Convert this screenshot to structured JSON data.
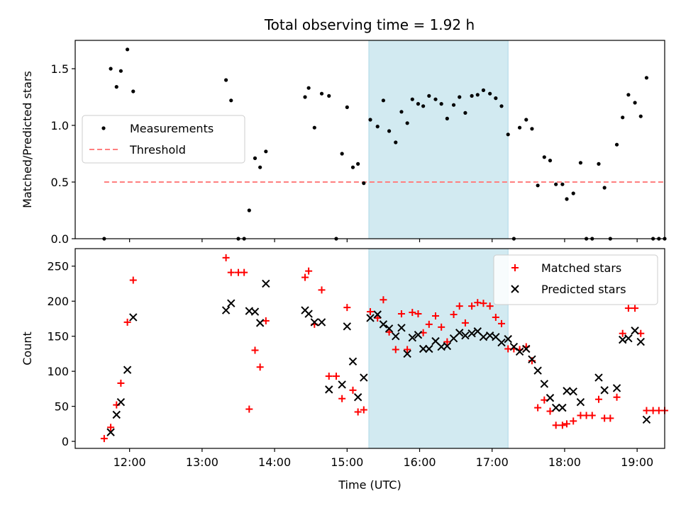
{
  "title": "Total observing time = 1.92 h",
  "colors": {
    "shade": "#add8e6",
    "measurement": "#000000",
    "threshold": "#ff7f7f",
    "matched": "#ff0000",
    "predicted": "#000000"
  },
  "chart_data": [
    {
      "type": "scatter",
      "ylabel": "Matched/Predicted stars",
      "xlabel": "",
      "ylim": [
        0,
        1.75
      ],
      "yticks": [
        "0.0",
        "0.5",
        "1.0",
        "1.5"
      ],
      "yticks_values": [
        0,
        0.5,
        1.0,
        1.5
      ],
      "xlim_hours": [
        11.25,
        19.38
      ],
      "shaded_span_hours": [
        15.3,
        17.22
      ],
      "legend": {
        "position": "center-left",
        "entries": [
          "Measurements",
          "Threshold"
        ]
      },
      "threshold": {
        "value": 0.5,
        "x_hours": [
          11.65,
          19.4
        ]
      },
      "series": [
        {
          "name": "Measurements",
          "points": [
            [
              11.65,
              0.0
            ],
            [
              11.74,
              1.5
            ],
            [
              11.82,
              1.34
            ],
            [
              11.88,
              1.48
            ],
            [
              11.97,
              1.67
            ],
            [
              12.05,
              1.3
            ],
            [
              13.33,
              1.4
            ],
            [
              13.4,
              1.22
            ],
            [
              13.5,
              0.0
            ],
            [
              13.58,
              0.0
            ],
            [
              13.65,
              0.25
            ],
            [
              13.73,
              0.71
            ],
            [
              13.8,
              0.63
            ],
            [
              13.88,
              0.77
            ],
            [
              14.42,
              1.25
            ],
            [
              14.47,
              1.33
            ],
            [
              14.55,
              0.98
            ],
            [
              14.65,
              1.28
            ],
            [
              14.75,
              1.26
            ],
            [
              14.85,
              0.0
            ],
            [
              14.93,
              0.75
            ],
            [
              15.0,
              1.16
            ],
            [
              15.08,
              0.63
            ],
            [
              15.15,
              0.66
            ],
            [
              15.23,
              0.49
            ],
            [
              15.32,
              1.05
            ],
            [
              15.42,
              0.99
            ],
            [
              15.5,
              1.22
            ],
            [
              15.58,
              0.95
            ],
            [
              15.67,
              0.85
            ],
            [
              15.75,
              1.12
            ],
            [
              15.83,
              1.02
            ],
            [
              15.9,
              1.23
            ],
            [
              15.98,
              1.19
            ],
            [
              16.05,
              1.17
            ],
            [
              16.13,
              1.26
            ],
            [
              16.22,
              1.23
            ],
            [
              16.3,
              1.19
            ],
            [
              16.38,
              1.06
            ],
            [
              16.47,
              1.18
            ],
            [
              16.55,
              1.25
            ],
            [
              16.63,
              1.11
            ],
            [
              16.72,
              1.26
            ],
            [
              16.8,
              1.27
            ],
            [
              16.88,
              1.31
            ],
            [
              16.97,
              1.28
            ],
            [
              17.05,
              1.24
            ],
            [
              17.13,
              1.17
            ],
            [
              17.22,
              0.92
            ],
            [
              17.3,
              0.0
            ],
            [
              17.38,
              0.98
            ],
            [
              17.47,
              1.05
            ],
            [
              17.55,
              0.97
            ],
            [
              17.63,
              0.47
            ],
            [
              17.72,
              0.72
            ],
            [
              17.8,
              0.69
            ],
            [
              17.88,
              0.48
            ],
            [
              17.97,
              0.48
            ],
            [
              18.03,
              0.35
            ],
            [
              18.12,
              0.4
            ],
            [
              18.22,
              0.67
            ],
            [
              18.3,
              0.0
            ],
            [
              18.38,
              0.0
            ],
            [
              18.47,
              0.66
            ],
            [
              18.55,
              0.45
            ],
            [
              18.63,
              0.0
            ],
            [
              18.72,
              0.83
            ],
            [
              18.8,
              1.07
            ],
            [
              18.88,
              1.27
            ],
            [
              18.97,
              1.2
            ],
            [
              19.05,
              1.08
            ],
            [
              19.13,
              1.42
            ],
            [
              19.22,
              0.0
            ],
            [
              19.3,
              0.0
            ],
            [
              19.38,
              0.0
            ]
          ]
        }
      ]
    },
    {
      "type": "scatter",
      "ylabel": "Count",
      "xlabel": "Time (UTC)",
      "ylim": [
        -10,
        275
      ],
      "yticks": [
        "0",
        "50",
        "100",
        "150",
        "200",
        "250"
      ],
      "yticks_values": [
        0,
        50,
        100,
        150,
        200,
        250
      ],
      "xlim_hours": [
        11.25,
        19.38
      ],
      "xticks": [
        "12:00",
        "13:00",
        "14:00",
        "15:00",
        "16:00",
        "17:00",
        "18:00",
        "19:00"
      ],
      "xticks_hours": [
        12,
        13,
        14,
        15,
        16,
        17,
        18,
        19
      ],
      "shaded_span_hours": [
        15.3,
        17.22
      ],
      "legend": {
        "position": "top-right",
        "entries": [
          "Matched stars",
          "Predicted stars"
        ]
      },
      "series": [
        {
          "name": "Matched stars",
          "points": [
            [
              11.65,
              4
            ],
            [
              11.74,
              20
            ],
            [
              11.82,
              52
            ],
            [
              11.88,
              83
            ],
            [
              11.97,
              170
            ],
            [
              12.05,
              230
            ],
            [
              13.33,
              262
            ],
            [
              13.4,
              241
            ],
            [
              13.5,
              241
            ],
            [
              13.58,
              241
            ],
            [
              13.65,
              46
            ],
            [
              13.73,
              130
            ],
            [
              13.8,
              106
            ],
            [
              13.88,
              172
            ],
            [
              14.42,
              234
            ],
            [
              14.47,
              243
            ],
            [
              14.55,
              167
            ],
            [
              14.65,
              216
            ],
            [
              14.75,
              93
            ],
            [
              14.85,
              93
            ],
            [
              14.93,
              61
            ],
            [
              15.0,
              191
            ],
            [
              15.08,
              73
            ],
            [
              15.15,
              42
            ],
            [
              15.23,
              45
            ],
            [
              15.32,
              185
            ],
            [
              15.42,
              176
            ],
            [
              15.5,
              202
            ],
            [
              15.58,
              156
            ],
            [
              15.67,
              131
            ],
            [
              15.75,
              182
            ],
            [
              15.83,
              131
            ],
            [
              15.9,
              184
            ],
            [
              15.98,
              182
            ],
            [
              16.05,
              155
            ],
            [
              16.13,
              167
            ],
            [
              16.22,
              179
            ],
            [
              16.3,
              163
            ],
            [
              16.38,
              142
            ],
            [
              16.47,
              181
            ],
            [
              16.55,
              193
            ],
            [
              16.63,
              169
            ],
            [
              16.72,
              193
            ],
            [
              16.8,
              198
            ],
            [
              16.88,
              197
            ],
            [
              16.97,
              193
            ],
            [
              17.05,
              177
            ],
            [
              17.13,
              168
            ],
            [
              17.22,
              132
            ],
            [
              17.3,
              132
            ],
            [
              17.38,
              131
            ],
            [
              17.47,
              135
            ],
            [
              17.55,
              115
            ],
            [
              17.63,
              48
            ],
            [
              17.72,
              59
            ],
            [
              17.8,
              43
            ],
            [
              17.88,
              23
            ],
            [
              17.97,
              23
            ],
            [
              18.03,
              25
            ],
            [
              18.12,
              29
            ],
            [
              18.22,
              37
            ],
            [
              18.3,
              37
            ],
            [
              18.38,
              37
            ],
            [
              18.47,
              60
            ],
            [
              18.55,
              33
            ],
            [
              18.63,
              33
            ],
            [
              18.72,
              63
            ],
            [
              18.8,
              154
            ],
            [
              18.88,
              190
            ],
            [
              18.97,
              190
            ],
            [
              19.05,
              154
            ],
            [
              19.13,
              44
            ],
            [
              19.22,
              44
            ],
            [
              19.3,
              44
            ],
            [
              19.38,
              44
            ]
          ]
        },
        {
          "name": "Predicted stars",
          "points": [
            [
              11.74,
              13
            ],
            [
              11.82,
              38
            ],
            [
              11.88,
              56
            ],
            [
              11.97,
              102
            ],
            [
              12.05,
              177
            ],
            [
              13.33,
              187
            ],
            [
              13.4,
              197
            ],
            [
              13.65,
              186
            ],
            [
              13.73,
              185
            ],
            [
              13.8,
              169
            ],
            [
              13.88,
              225
            ],
            [
              14.42,
              187
            ],
            [
              14.47,
              182
            ],
            [
              14.55,
              170
            ],
            [
              14.65,
              170
            ],
            [
              14.75,
              74
            ],
            [
              14.93,
              81
            ],
            [
              15.0,
              164
            ],
            [
              15.08,
              114
            ],
            [
              15.15,
              63
            ],
            [
              15.23,
              91
            ],
            [
              15.32,
              176
            ],
            [
              15.42,
              181
            ],
            [
              15.5,
              167
            ],
            [
              15.58,
              161
            ],
            [
              15.67,
              150
            ],
            [
              15.75,
              162
            ],
            [
              15.83,
              125
            ],
            [
              15.9,
              148
            ],
            [
              15.98,
              152
            ],
            [
              16.05,
              132
            ],
            [
              16.13,
              132
            ],
            [
              16.22,
              143
            ],
            [
              16.3,
              135
            ],
            [
              16.38,
              136
            ],
            [
              16.47,
              147
            ],
            [
              16.55,
              155
            ],
            [
              16.63,
              151
            ],
            [
              16.72,
              154
            ],
            [
              16.8,
              157
            ],
            [
              16.88,
              149
            ],
            [
              16.97,
              151
            ],
            [
              17.05,
              149
            ],
            [
              17.13,
              141
            ],
            [
              17.22,
              146
            ],
            [
              17.3,
              135
            ],
            [
              17.38,
              128
            ],
            [
              17.47,
              132
            ],
            [
              17.55,
              117
            ],
            [
              17.63,
              101
            ],
            [
              17.72,
              82
            ],
            [
              17.8,
              62
            ],
            [
              17.88,
              48
            ],
            [
              17.97,
              48
            ],
            [
              18.03,
              72
            ],
            [
              18.12,
              71
            ],
            [
              18.22,
              56
            ],
            [
              18.47,
              91
            ],
            [
              18.55,
              73
            ],
            [
              18.72,
              76
            ],
            [
              18.8,
              145
            ],
            [
              18.88,
              147
            ],
            [
              18.97,
              158
            ],
            [
              19.05,
              142
            ],
            [
              19.13,
              31
            ]
          ]
        }
      ]
    }
  ]
}
